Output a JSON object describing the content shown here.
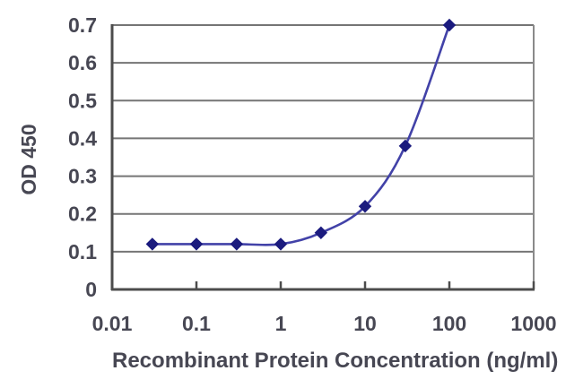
{
  "chart_data": {
    "type": "line",
    "title": "",
    "xlabel": "Recombinant Protein Concentration (ng/ml)",
    "ylabel": "OD 450",
    "x_scale": "log",
    "xlim": [
      0.01,
      1000
    ],
    "ylim": [
      0,
      0.7
    ],
    "x_tick_labels": [
      "0.01",
      "0.1",
      "1",
      "10",
      "100",
      "1000"
    ],
    "x_tick_values": [
      0.01,
      0.1,
      1,
      10,
      100,
      1000
    ],
    "y_tick_labels": [
      "0",
      "0.1",
      "0.2",
      "0.3",
      "0.4",
      "0.5",
      "0.6",
      "0.7"
    ],
    "y_tick_values": [
      0,
      0.1,
      0.2,
      0.3,
      0.4,
      0.5,
      0.6,
      0.7
    ],
    "grid": "horizontal",
    "legend": "none",
    "series": [
      {
        "name": "OD 450",
        "x": [
          0.03,
          0.1,
          0.3,
          1,
          3,
          10,
          30,
          100
        ],
        "y": [
          0.12,
          0.12,
          0.12,
          0.12,
          0.15,
          0.22,
          0.38,
          0.7
        ],
        "marker": "diamond"
      }
    ]
  },
  "colors": {
    "background": "#ffffff",
    "plot_background": "#ffffff",
    "gridline": "#757575",
    "frame": "#8a8a8a",
    "axis": "#4c4c4c",
    "tick": "#4c4c4c",
    "label_text": "#474753",
    "line": "#4242a8",
    "marker": "#1b1b7e"
  }
}
